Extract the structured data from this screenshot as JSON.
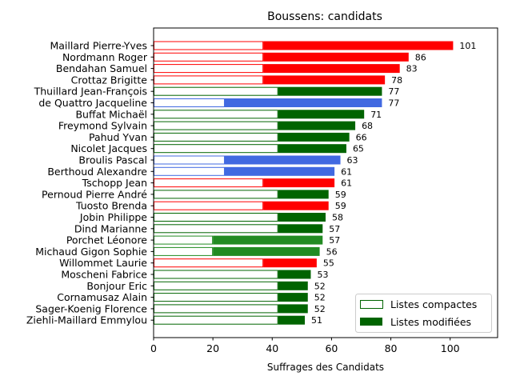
{
  "chart_data": {
    "type": "bar",
    "orientation": "horizontal",
    "stacked": true,
    "title": "Boussens: candidats",
    "xlabel": "Suffrages des Candidats",
    "ylabel": "",
    "xlim": [
      0,
      116
    ],
    "xticks": [
      0,
      20,
      40,
      60,
      80,
      100
    ],
    "grid": false,
    "legend_position": "lower right",
    "series": [
      {
        "name": "Listes compactes",
        "style": "outline"
      },
      {
        "name": "Listes modifiées",
        "style": "filled"
      }
    ],
    "candidates": [
      {
        "name": "Maillard Pierre-Yves",
        "compact": 37,
        "total": 101,
        "color": "#ff0000"
      },
      {
        "name": "Nordmann Roger",
        "compact": 37,
        "total": 86,
        "color": "#ff0000"
      },
      {
        "name": "Bendahan Samuel",
        "compact": 37,
        "total": 83,
        "color": "#ff0000"
      },
      {
        "name": "Crottaz Brigitte",
        "compact": 37,
        "total": 78,
        "color": "#ff0000"
      },
      {
        "name": "Thuillard Jean-François",
        "compact": 42,
        "total": 77,
        "color": "#006400"
      },
      {
        "name": "de Quattro Jacqueline",
        "compact": 24,
        "total": 77,
        "color": "#4169e1"
      },
      {
        "name": "Buffat Michaël",
        "compact": 42,
        "total": 71,
        "color": "#006400"
      },
      {
        "name": "Freymond Sylvain",
        "compact": 42,
        "total": 68,
        "color": "#006400"
      },
      {
        "name": "Pahud Yvan",
        "compact": 42,
        "total": 66,
        "color": "#006400"
      },
      {
        "name": "Nicolet Jacques",
        "compact": 42,
        "total": 65,
        "color": "#006400"
      },
      {
        "name": "Broulis Pascal",
        "compact": 24,
        "total": 63,
        "color": "#4169e1"
      },
      {
        "name": "Berthoud Alexandre",
        "compact": 24,
        "total": 61,
        "color": "#4169e1"
      },
      {
        "name": "Tschopp Jean",
        "compact": 37,
        "total": 61,
        "color": "#ff0000"
      },
      {
        "name": "Pernoud Pierre André",
        "compact": 42,
        "total": 59,
        "color": "#006400"
      },
      {
        "name": "Tuosto Brenda",
        "compact": 37,
        "total": 59,
        "color": "#ff0000"
      },
      {
        "name": "Jobin Philippe",
        "compact": 42,
        "total": 58,
        "color": "#006400"
      },
      {
        "name": "Dind Marianne",
        "compact": 42,
        "total": 57,
        "color": "#006400"
      },
      {
        "name": "Porchet Léonore",
        "compact": 20,
        "total": 57,
        "color": "#228b22"
      },
      {
        "name": "Michaud Gigon Sophie",
        "compact": 20,
        "total": 56,
        "color": "#228b22"
      },
      {
        "name": "Willommet Laurie",
        "compact": 37,
        "total": 55,
        "color": "#ff0000"
      },
      {
        "name": "Moscheni Fabrice",
        "compact": 42,
        "total": 53,
        "color": "#006400"
      },
      {
        "name": "Bonjour Eric",
        "compact": 42,
        "total": 52,
        "color": "#006400"
      },
      {
        "name": "Cornamusaz Alain",
        "compact": 42,
        "total": 52,
        "color": "#006400"
      },
      {
        "name": "Sager-Koenig Florence",
        "compact": 42,
        "total": 52,
        "color": "#006400"
      },
      {
        "name": "Ziehli-Maillard Emmylou",
        "compact": 42,
        "total": 51,
        "color": "#006400"
      }
    ]
  }
}
